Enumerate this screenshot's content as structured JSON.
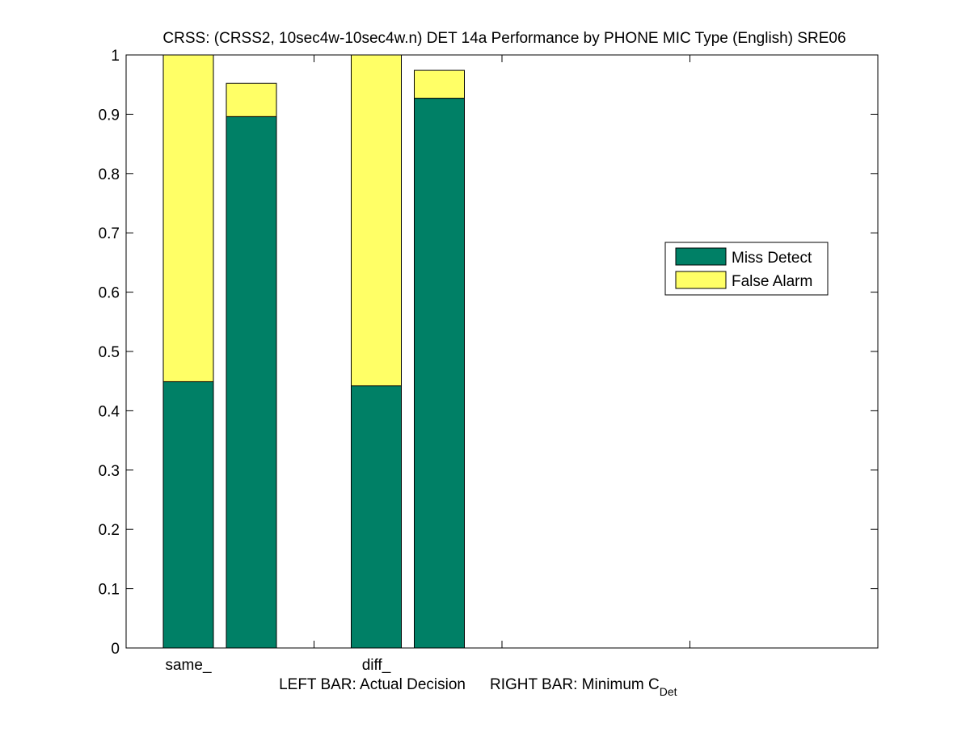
{
  "chart_data": {
    "type": "bar",
    "stacked": true,
    "title": "CRSS: (CRSS2, 10sec4w-10sec4w.n) DET 14a Performance by PHONE MIC Type (English) SRE06",
    "xlabel": {
      "left": "LEFT BAR: Actual Decision",
      "right": "RIGHT BAR: Minimum C",
      "right_subscript": "Det"
    },
    "categories": [
      "same_",
      "diff_"
    ],
    "ylim": [
      0,
      1
    ],
    "yticks": [
      "0",
      "0.1",
      "0.2",
      "0.3",
      "0.4",
      "0.5",
      "0.6",
      "0.7",
      "0.8",
      "0.9",
      "1"
    ],
    "grid": false,
    "legend_position": "right",
    "series": [
      {
        "name": "Miss Detect",
        "color": "#008066",
        "actual": [
          0.449,
          0.442
        ],
        "minimum": [
          0.896,
          0.927
        ]
      },
      {
        "name": "False Alarm",
        "color": "#ffff66",
        "actual": [
          0.551,
          0.558
        ],
        "minimum": [
          0.056,
          0.047
        ]
      }
    ]
  }
}
